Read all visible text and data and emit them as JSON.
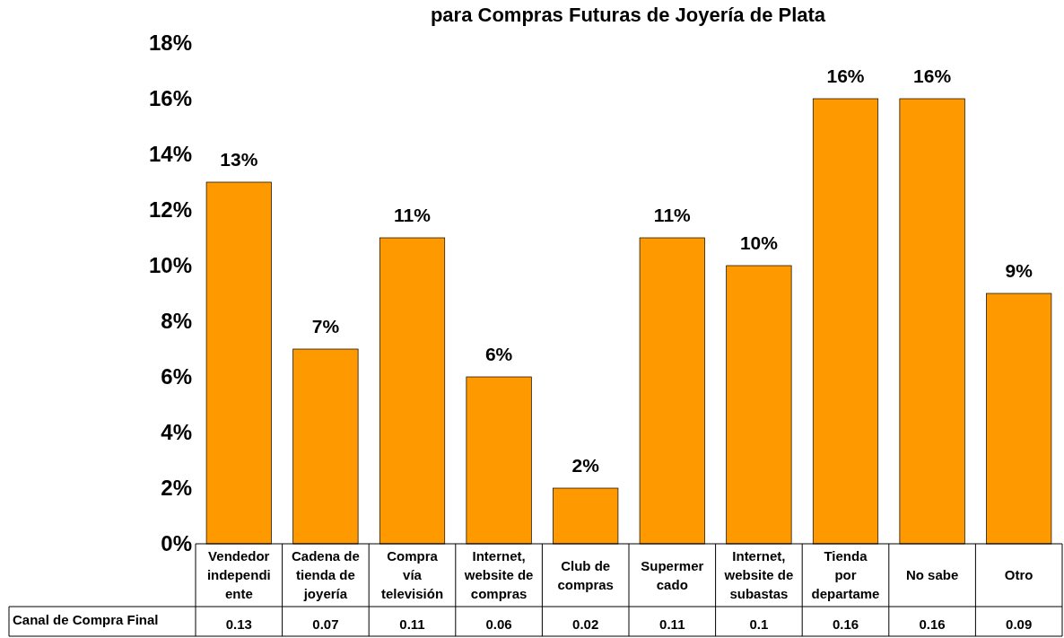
{
  "chart_data": {
    "type": "bar",
    "title": "para Compras Futuras de Joyería de Plata",
    "categories": [
      "Vendedor\nindependi\nente",
      "Cadena de\ntienda de\njoyería",
      "Compra\nvía\ntelevisión",
      "Internet,\nwebsite de\ncompras",
      "Club de\ncompras",
      "Supermer\ncado",
      "Internet,\nwebsite de\nsubastas",
      "Tienda\npor\ndepartame",
      "No sabe",
      "Otro"
    ],
    "series": [
      {
        "name": "Canal de Compra Final",
        "color": "#ff9900",
        "values": [
          0.13,
          0.07,
          0.11,
          0.06,
          0.02,
          0.11,
          0.1,
          0.16,
          0.16,
          0.09
        ]
      }
    ],
    "annotations": [
      {
        "text": "13%",
        "x": "Vendedor\nindependi\nente",
        "y": 0.13
      },
      {
        "text": "7%",
        "x": "Cadena de\ntienda de\njoyería",
        "y": 0.07
      },
      {
        "text": "11%",
        "x": "Compra\nvía\ntelevisión",
        "y": 0.11
      },
      {
        "text": "6%",
        "x": "Internet,\nwebsite de\ncompras",
        "y": 0.06
      },
      {
        "text": "2%",
        "x": "Club de\ncompras",
        "y": 0.02
      },
      {
        "text": "11%",
        "x": "Supermer\ncado",
        "y": 0.11
      },
      {
        "text": "10%",
        "x": "Internet,\nwebsite de\nsubastas",
        "y": 0.1
      },
      {
        "text": "16%",
        "x": "Tienda\npor\ndepartame",
        "y": 0.16
      },
      {
        "text": "16%",
        "x": "No sabe",
        "y": 0.16
      },
      {
        "text": "9%",
        "x": "Otro",
        "y": 0.09
      }
    ],
    "ylim": [
      0,
      0.18
    ],
    "yticks": [
      {
        "value": 0,
        "label": "0%"
      },
      {
        "value": 0.02,
        "label": "2%"
      },
      {
        "value": 0.04,
        "label": "4%"
      },
      {
        "value": 0.06,
        "label": "6%"
      },
      {
        "value": 0.08,
        "label": "8%"
      },
      {
        "value": 0.1,
        "label": "10%"
      },
      {
        "value": 0.12,
        "label": "12%"
      },
      {
        "value": 0.14,
        "label": "14%"
      },
      {
        "value": 0.16,
        "label": "16%"
      },
      {
        "value": 0.18,
        "label": "18%"
      }
    ],
    "grid": false,
    "legend": "bottom",
    "data_labels": true
  }
}
